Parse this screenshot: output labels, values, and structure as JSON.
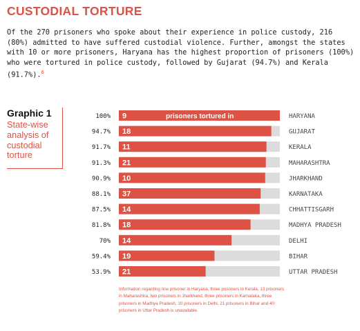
{
  "header": {
    "title": "CUSTODIAL TORTURE",
    "intro": "Of the 270 prisoners who spoke about their experience in police custody, 216 (80%) admitted to have suffered custodial violence. Further, amongst the states with 10 or more prisoners, Haryana has the highest proportion of prisoners (100%) who were tortured in police custody, followed by Gujarat (94.7%) and Kerala (91.7%).",
    "footnote_marker": "6"
  },
  "graphic": {
    "number": "Graphic 1",
    "subtitle": "State-wise analysis of custodial torture"
  },
  "chart_data": {
    "type": "bar",
    "orientation": "horizontal",
    "stacked_on_full_track": true,
    "bar_label_title": "prisoners tortured in",
    "categories": [
      "HARYANA",
      "GUJARAT",
      "KERALA",
      "MAHARASHTRA",
      "JHARKHAND",
      "KARNATAKA",
      "CHHATTISGARH",
      "MADHYA PRADESH",
      "DELHI",
      "BIHAR",
      "UTTAR PRADESH"
    ],
    "percent_labels": [
      "100%",
      "94.7%",
      "91.7%",
      "91.3%",
      "90.9%",
      "88.1%",
      "87.5%",
      "81.8%",
      "70%",
      "59.4%",
      "53.9%"
    ],
    "values": [
      100,
      94.7,
      91.7,
      91.3,
      90.9,
      88.1,
      87.5,
      81.8,
      70,
      59.4,
      53.9
    ],
    "counts": [
      "9",
      "18",
      "11",
      "21",
      "10",
      "37",
      "14",
      "18",
      "14",
      "19",
      "21"
    ],
    "xlim": [
      0,
      100
    ],
    "bar_color": "#dd5244",
    "track_color": "#dcdcdc"
  },
  "note": "Information regarding one prisoner in Haryana, three prisoners in Kerala, 13 prisoners in Maharashtra, two prisoners in Jharkhand, three prisoners in Karnataka, three prisoners in Madhya Pradesh, 10 prisoners in Delhi, 21 prisoners in Bihar and 40 prisoners in Uttar Pradesh is unavailable."
}
